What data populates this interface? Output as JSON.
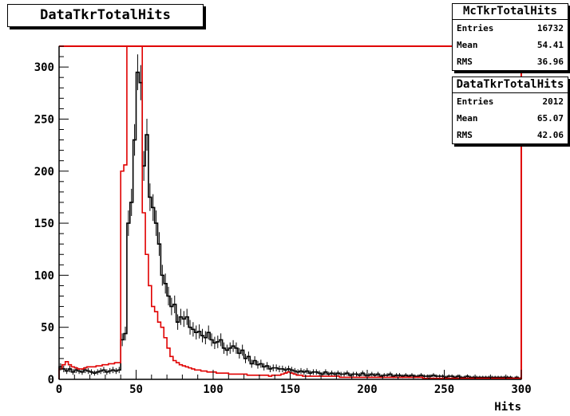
{
  "title": "DataTkrTotalHits",
  "stats": [
    {
      "name": "McTkrTotalHits",
      "rows": [
        {
          "label": "Entries",
          "value": "16732"
        },
        {
          "label": "Mean",
          "value": "54.41"
        },
        {
          "label": "RMS",
          "value": "36.96"
        }
      ]
    },
    {
      "name": "DataTkrTotalHits",
      "rows": [
        {
          "label": "Entries",
          "value": "2012"
        },
        {
          "label": "Mean",
          "value": "65.07"
        },
        {
          "label": "RMS",
          "value": "42.06"
        }
      ]
    }
  ],
  "chart_data": {
    "type": "histogram",
    "title": "DataTkrTotalHits",
    "xlabel": "Hits",
    "ylabel": "",
    "xlim": [
      0,
      300
    ],
    "ylim": [
      0,
      320
    ],
    "xticks": [
      0,
      50,
      100,
      150,
      200,
      250,
      300
    ],
    "yticks": [
      0,
      50,
      100,
      150,
      200,
      250,
      300
    ],
    "grid": false,
    "series": [
      {
        "color": "#000000",
        "bin_width": 2,
        "x_start": 0,
        "values": [
          12,
          10,
          8,
          10,
          7,
          9,
          8,
          7,
          9,
          8,
          7,
          6,
          7,
          8,
          9,
          7,
          8,
          9,
          8,
          9,
          38,
          44,
          150,
          170,
          230,
          295,
          285,
          205,
          235,
          175,
          165,
          150,
          130,
          100,
          92,
          80,
          70,
          72,
          55,
          60,
          58,
          60,
          50,
          48,
          45,
          46,
          42,
          40,
          45,
          38,
          35,
          36,
          38,
          30,
          28,
          30,
          32,
          30,
          25,
          28,
          20,
          22,
          15,
          18,
          14,
          15,
          12,
          13,
          10,
          11,
          11,
          10,
          10,
          9,
          10,
          9,
          8,
          7,
          8,
          7,
          8,
          6,
          7,
          7,
          6,
          5,
          7,
          5,
          6,
          5,
          6,
          5,
          5,
          6,
          4,
          5,
          5,
          4,
          6,
          4,
          4,
          5,
          4,
          5,
          3,
          4,
          4,
          5,
          3,
          4,
          4,
          3,
          4,
          3,
          4,
          3,
          3,
          4,
          3,
          3,
          3,
          4,
          3,
          3,
          3,
          2,
          3,
          3,
          2,
          3,
          2,
          2,
          3,
          2,
          2,
          2,
          2,
          2,
          2,
          2,
          2,
          2,
          2,
          2,
          2,
          2,
          2,
          1,
          2,
          1
        ]
      },
      {
        "color": "#e00000",
        "bin_width": 2,
        "x_start": 0,
        "values": [
          10,
          14,
          17,
          14,
          12,
          11,
          10,
          10,
          11,
          12,
          12,
          12,
          13,
          13,
          14,
          14,
          15,
          15,
          16,
          16,
          200,
          206,
          320,
          320,
          320,
          320,
          320,
          160,
          120,
          90,
          70,
          65,
          55,
          50,
          40,
          30,
          22,
          18,
          16,
          14,
          13,
          12,
          11,
          10,
          9,
          9,
          8,
          8,
          7,
          7,
          7,
          6,
          6,
          6,
          6,
          5,
          5,
          5,
          5,
          5,
          5,
          4,
          4,
          4,
          4,
          4,
          4,
          4,
          3,
          4,
          4,
          4,
          5,
          6,
          7,
          6,
          5,
          4,
          4,
          3,
          3,
          3,
          3,
          3,
          3,
          3,
          3,
          3,
          3,
          3,
          3,
          2,
          2,
          2,
          2,
          2,
          2,
          2,
          2,
          2,
          2,
          2,
          2,
          2,
          2,
          2,
          2,
          2,
          2,
          2,
          2,
          2,
          2,
          2,
          2,
          2,
          2,
          2,
          1,
          1,
          1,
          1,
          1,
          1,
          1,
          1,
          1,
          1,
          1,
          1,
          1,
          1,
          1,
          1,
          1,
          1,
          1,
          1,
          1,
          1,
          1,
          1,
          1,
          1,
          1,
          1,
          1,
          1,
          1,
          1
        ]
      }
    ]
  }
}
